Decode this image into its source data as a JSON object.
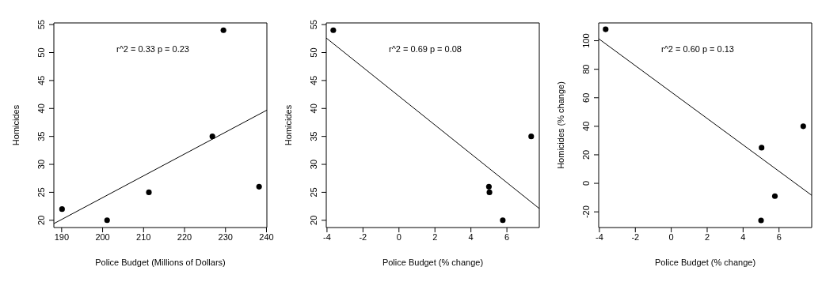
{
  "chart_data": [
    {
      "type": "scatter",
      "xlabel": "Police Budget (Millions of Dollars)",
      "ylabel": "Homicides",
      "annotations": [
        "r^2 = 0.33 p = 0.23"
      ],
      "xlim": [
        188.1,
        240.1
      ],
      "ylim": [
        18.7,
        55.3
      ],
      "xticks": [
        190,
        200,
        210,
        220,
        230,
        240
      ],
      "yticks": [
        20,
        25,
        30,
        35,
        40,
        45,
        50,
        55
      ],
      "grid": false,
      "series": [
        {
          "type": "scatter",
          "marker": "circle",
          "color": "#000000",
          "x": [
            190.1,
            201.1,
            211.3,
            226.8,
            229.5,
            238.2
          ],
          "values": [
            22,
            20,
            25,
            35,
            54,
            26
          ]
        },
        {
          "type": "line",
          "color": "#000000",
          "x": [
            188.1,
            240.1
          ],
          "values": [
            19.4,
            39.7
          ]
        }
      ]
    },
    {
      "type": "scatter",
      "xlabel": "Police Budget (% change)",
      "ylabel": "Homicides",
      "annotations": [
        "r^2 = 0.69 p = 0.08"
      ],
      "xlim": [
        -4.04,
        7.8
      ],
      "ylim": [
        18.7,
        55.3
      ],
      "xticks": [
        -4,
        -2,
        0,
        2,
        4,
        6
      ],
      "yticks": [
        20,
        25,
        30,
        35,
        40,
        45,
        50,
        55
      ],
      "grid": false,
      "series": [
        {
          "type": "scatter",
          "marker": "circle",
          "color": "#000000",
          "x": [
            -3.65,
            5.0,
            5.03,
            5.77,
            7.35
          ],
          "values": [
            54,
            26,
            25,
            20,
            35
          ]
        },
        {
          "type": "line",
          "color": "#000000",
          "x": [
            -4.04,
            7.8
          ],
          "values": [
            52.6,
            22.1
          ]
        }
      ]
    },
    {
      "type": "scatter",
      "xlabel": "Police Budget (% change)",
      "ylabel": "Homicides (% change)",
      "annotations": [
        "r^2 = 0.60 p = 0.13"
      ],
      "xlim": [
        -4.04,
        7.82
      ],
      "ylim": [
        -31,
        112.5
      ],
      "xticks": [
        -4,
        -2,
        0,
        2,
        4,
        6
      ],
      "yticks": [
        -20,
        0,
        20,
        40,
        60,
        80,
        100
      ],
      "grid": false,
      "series": [
        {
          "type": "scatter",
          "marker": "circle",
          "color": "#000000",
          "x": [
            -3.65,
            5.03,
            7.35,
            5.77,
            5.0
          ],
          "values": [
            108,
            25,
            40,
            -9,
            -26
          ]
        },
        {
          "type": "line",
          "color": "#000000",
          "x": [
            -4.04,
            7.82
          ],
          "values": [
            101.4,
            -8.4
          ]
        }
      ]
    }
  ]
}
